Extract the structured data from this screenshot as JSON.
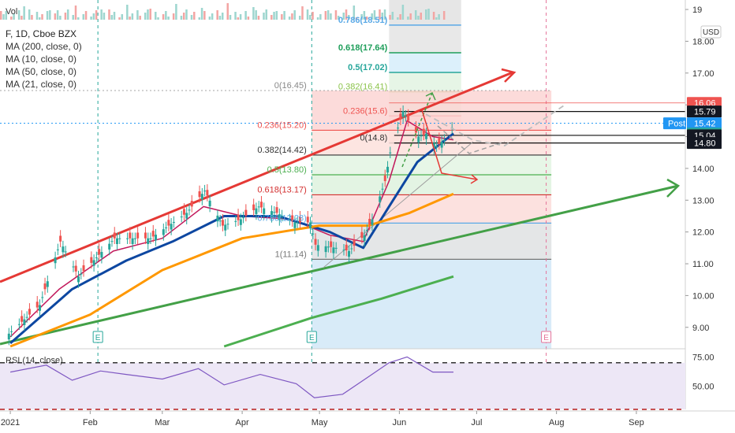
{
  "header": {
    "vol_label": "Vol",
    "symbol": "F, 1D, Cboe BZX",
    "indicators": [
      "MA (200, close, 0)",
      "MA (10, close, 0)",
      "MA (50, close, 0)",
      "MA (21, close, 0)"
    ],
    "currency": "USD",
    "rsi_label": "RSI (14, close)"
  },
  "colors": {
    "background": "#ffffff",
    "up": "#26a69a",
    "down": "#ef5350",
    "channel": "#e53935",
    "trend_green": "#43a047",
    "ma10": "#c2185b",
    "ma21": "#0d47a1",
    "ma50": "#ff9800",
    "ma200": "#4caf50",
    "projection": "#bdbdbd",
    "rsi_line": "#7e57c2",
    "rsi_fill": "#ede7f6",
    "price_label_red": "#ef5350",
    "price_label_blue": "#2196f3"
  },
  "chart_data": {
    "type": "candlestick",
    "title": "F, 1D, Cboe BZX",
    "x_axis": {
      "start": "2020-12-28",
      "end": "2021-09-20",
      "tick_labels": [
        {
          "date": "2021-01-01",
          "label": "2021"
        },
        {
          "date": "2021-02-01",
          "label": "Feb"
        },
        {
          "date": "2021-03-01",
          "label": "Mar"
        },
        {
          "date": "2021-04-01",
          "label": "Apr"
        },
        {
          "date": "2021-05-01",
          "label": "May"
        },
        {
          "date": "2021-06-01",
          "label": "Jun"
        },
        {
          "date": "2021-07-01",
          "label": "Jul"
        },
        {
          "date": "2021-08-01",
          "label": "Aug"
        },
        {
          "date": "2021-09-01",
          "label": "Sep"
        }
      ]
    },
    "y_axis": {
      "range": [
        8.4,
        19.1
      ],
      "tick_labels": [
        "9.00",
        "10.00",
        "11.00",
        "12.00",
        "13.00",
        "14.00",
        "15.00",
        "16.00",
        "17.00",
        "18.00",
        "19"
      ]
    },
    "ohlc_points": [
      {
        "date": "2020-12-31",
        "close": 8.8
      },
      {
        "date": "2021-01-12",
        "close": 9.7
      },
      {
        "date": "2021-01-20",
        "close": 11.7
      },
      {
        "date": "2021-01-27",
        "close": 10.6
      },
      {
        "date": "2021-02-10",
        "close": 11.8
      },
      {
        "date": "2021-02-24",
        "close": 11.8
      },
      {
        "date": "2021-03-10",
        "close": 12.6
      },
      {
        "date": "2021-03-17",
        "close": 13.3
      },
      {
        "date": "2021-03-24",
        "close": 12.2
      },
      {
        "date": "2021-03-31",
        "close": 12.4
      },
      {
        "date": "2021-04-07",
        "close": 12.8
      },
      {
        "date": "2021-04-14",
        "close": 12.6
      },
      {
        "date": "2021-04-21",
        "close": 12.3
      },
      {
        "date": "2021-04-27",
        "close": 12.3
      },
      {
        "date": "2021-04-29",
        "close": 11.6
      },
      {
        "date": "2021-05-07",
        "close": 11.5
      },
      {
        "date": "2021-05-12",
        "close": 11.4
      },
      {
        "date": "2021-05-18",
        "close": 11.9
      },
      {
        "date": "2021-05-21",
        "close": 12.4
      },
      {
        "date": "2021-05-26",
        "close": 13.6
      },
      {
        "date": "2021-05-28",
        "close": 14.5
      },
      {
        "date": "2021-06-02",
        "close": 15.8
      },
      {
        "date": "2021-06-04",
        "close": 15.5
      },
      {
        "date": "2021-06-08",
        "close": 15.0
      },
      {
        "date": "2021-06-11",
        "close": 15.1
      },
      {
        "date": "2021-06-15",
        "close": 14.7
      },
      {
        "date": "2021-06-18",
        "close": 14.9
      },
      {
        "date": "2021-06-22",
        "close": 15.4
      }
    ],
    "moving_averages": [
      {
        "name": "MA (10, close, 0)",
        "points": [
          [
            "2021-01-01",
            8.7
          ],
          [
            "2021-01-20",
            10.2
          ],
          [
            "2021-02-10",
            11.4
          ],
          [
            "2021-03-01",
            11.8
          ],
          [
            "2021-03-17",
            12.8
          ],
          [
            "2021-04-01",
            12.5
          ],
          [
            "2021-04-20",
            12.4
          ],
          [
            "2021-05-05",
            11.9
          ],
          [
            "2021-05-18",
            11.7
          ],
          [
            "2021-05-28",
            13.6
          ],
          [
            "2021-06-04",
            15.5
          ],
          [
            "2021-06-14",
            15.0
          ],
          [
            "2021-06-22",
            14.9
          ]
        ]
      },
      {
        "name": "MA (21, close, 0)",
        "points": [
          [
            "2021-01-01",
            8.5
          ],
          [
            "2021-01-25",
            10.2
          ],
          [
            "2021-02-15",
            11.1
          ],
          [
            "2021-03-05",
            11.7
          ],
          [
            "2021-03-25",
            12.5
          ],
          [
            "2021-04-15",
            12.5
          ],
          [
            "2021-05-05",
            12.0
          ],
          [
            "2021-05-18",
            11.5
          ],
          [
            "2021-05-28",
            12.8
          ],
          [
            "2021-06-08",
            14.2
          ],
          [
            "2021-06-22",
            15.1
          ]
        ]
      },
      {
        "name": "MA (50, close, 0)",
        "points": [
          [
            "2021-01-01",
            8.4
          ],
          [
            "2021-02-01",
            9.4
          ],
          [
            "2021-03-01",
            10.8
          ],
          [
            "2021-04-01",
            11.8
          ],
          [
            "2021-05-01",
            12.2
          ],
          [
            "2021-05-20",
            12.2
          ],
          [
            "2021-06-05",
            12.6
          ],
          [
            "2021-06-22",
            13.2
          ]
        ]
      },
      {
        "name": "MA (200, close, 0)",
        "points": [
          [
            "2021-03-25",
            8.4
          ],
          [
            "2021-04-28",
            9.3
          ],
          [
            "2021-05-25",
            9.9
          ],
          [
            "2021-06-22",
            10.6
          ]
        ]
      }
    ],
    "fib_left": {
      "levels": [
        {
          "label": "0(16.45)",
          "value": 16.45
        },
        {
          "label": "0.236(15.20)",
          "value": 15.2
        },
        {
          "label": "0.382(14.42)",
          "value": 14.42
        },
        {
          "label": "0.5(13.80)",
          "value": 13.8
        },
        {
          "label": "0.618(13.17)",
          "value": 13.17
        },
        {
          "label": "0.786(12.28)",
          "value": 12.28
        },
        {
          "label": "1(11.14)",
          "value": 11.14
        }
      ]
    },
    "fib_right": {
      "levels": [
        {
          "label": "0.786(18.51)",
          "value": 18.51
        },
        {
          "label": "0.618(17.64)",
          "value": 17.64
        },
        {
          "label": "0.5(17.02)",
          "value": 17.02
        },
        {
          "label": "0.382(16.41)",
          "value": 16.41
        },
        {
          "label": "0.236(15.6)",
          "value": 15.65
        },
        {
          "label": "0(14.8)",
          "value": 14.8
        }
      ]
    },
    "price_labels": [
      {
        "value": 16.06,
        "text": "16.06",
        "kind": "red"
      },
      {
        "value": 15.79,
        "text": "15.79",
        "kind": "dark"
      },
      {
        "value": 15.42,
        "text": "15.42",
        "kind": "blue",
        "tag": "Post"
      },
      {
        "value": 15.42,
        "text": "15.42",
        "kind": "teal"
      },
      {
        "value": 15.04,
        "text": "15.04",
        "kind": "dark"
      },
      {
        "value": 14.8,
        "text": "14.80",
        "kind": "dark"
      }
    ],
    "earnings_markers": [
      {
        "date": "2021-02-04",
        "label": "E"
      },
      {
        "date": "2021-04-28",
        "label": "E"
      },
      {
        "date": "2021-07-28",
        "label": "E"
      }
    ],
    "rsi": {
      "name": "RSI (14, close)",
      "range": [
        30,
        80
      ],
      "levels": [
        70,
        30
      ],
      "tick_labels": [
        "50.00",
        "75.00"
      ],
      "points": [
        [
          "2021-01-01",
          62
        ],
        [
          "2021-01-15",
          68
        ],
        [
          "2021-01-25",
          55
        ],
        [
          "2021-02-05",
          63
        ],
        [
          "2021-02-15",
          60
        ],
        [
          "2021-03-01",
          56
        ],
        [
          "2021-03-15",
          65
        ],
        [
          "2021-03-25",
          51
        ],
        [
          "2021-04-08",
          60
        ],
        [
          "2021-04-22",
          52
        ],
        [
          "2021-04-29",
          40
        ],
        [
          "2021-05-10",
          43
        ],
        [
          "2021-05-20",
          58
        ],
        [
          "2021-05-28",
          70
        ],
        [
          "2021-06-04",
          75
        ],
        [
          "2021-06-14",
          62
        ],
        [
          "2021-06-22",
          62
        ]
      ]
    }
  }
}
